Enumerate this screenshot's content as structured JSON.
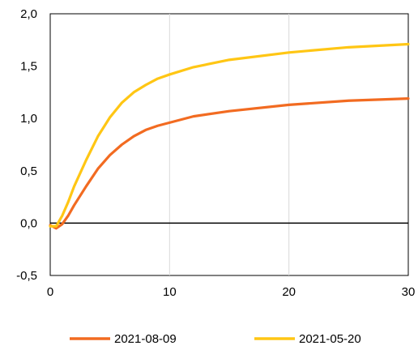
{
  "chart_data": {
    "type": "line",
    "xlim": [
      0,
      30
    ],
    "ylim": [
      -0.5,
      2.0
    ],
    "x_ticks": [
      0,
      10,
      20,
      30
    ],
    "x_tick_labels": [
      "0",
      "10",
      "20",
      "30"
    ],
    "y_ticks": [
      -0.5,
      0.0,
      0.5,
      1.0,
      1.5,
      2.0
    ],
    "y_tick_labels": [
      "-0,5",
      "0,0",
      "0,5",
      "1,0",
      "1,5",
      "2,0"
    ],
    "grid": "vertical",
    "zero_line": true,
    "legend": "bottom",
    "series": [
      {
        "name": "2021-08-09",
        "color": "#F26B21",
        "x": [
          0,
          0.5,
          1,
          1.5,
          2,
          3,
          4,
          5,
          6,
          7,
          8,
          9,
          10,
          12,
          15,
          20,
          25,
          30
        ],
        "y": [
          -0.02,
          -0.05,
          -0.01,
          0.07,
          0.17,
          0.35,
          0.52,
          0.65,
          0.75,
          0.83,
          0.89,
          0.93,
          0.96,
          1.02,
          1.07,
          1.13,
          1.17,
          1.19
        ]
      },
      {
        "name": "2021-05-20",
        "color": "#FFC614",
        "x": [
          0,
          0.5,
          1,
          1.5,
          2,
          3,
          4,
          5,
          6,
          7,
          8,
          9,
          10,
          12,
          15,
          20,
          25,
          30
        ],
        "y": [
          -0.03,
          -0.03,
          0.07,
          0.2,
          0.35,
          0.6,
          0.83,
          1.01,
          1.15,
          1.25,
          1.32,
          1.38,
          1.42,
          1.49,
          1.56,
          1.63,
          1.68,
          1.71
        ]
      }
    ]
  }
}
